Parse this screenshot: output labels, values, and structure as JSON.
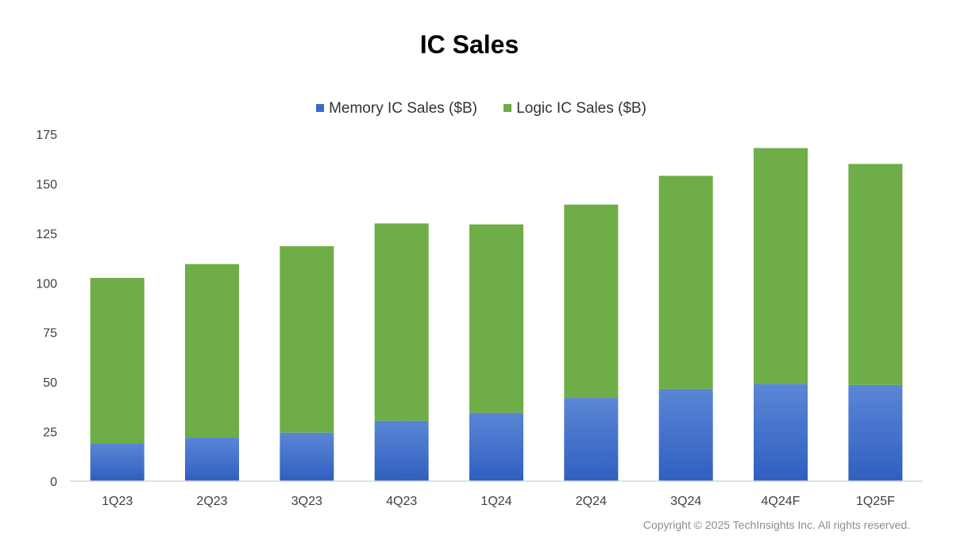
{
  "colors": {
    "memory_top": "#5b86d6",
    "memory_bottom": "#2f5fc0",
    "logic": "#6ead47",
    "axis": "#d9d9d9"
  },
  "copyright": "Copyright © 2025 TechInsights Inc.  All rights reserved.",
  "chart_data": {
    "type": "bar",
    "stacked": true,
    "title": "IC Sales",
    "legend_position": "top",
    "categories": [
      "1Q23",
      "2Q23",
      "3Q23",
      "4Q23",
      "1Q24",
      "2Q24",
      "3Q24",
      "4Q24F",
      "1Q25F"
    ],
    "series": [
      {
        "name": "Memory IC Sales ($B)",
        "values": [
          19,
          22,
          24.5,
          30.5,
          34.5,
          42,
          46.5,
          49,
          48.5
        ]
      },
      {
        "name": "Logic IC Sales ($B)",
        "values": [
          83.5,
          87.5,
          94,
          99.5,
          95,
          97.5,
          107.5,
          119,
          111.5
        ]
      }
    ],
    "yticks": [
      0,
      25,
      50,
      75,
      100,
      125,
      150,
      175
    ],
    "ylim": [
      0,
      175
    ],
    "grid": false
  }
}
